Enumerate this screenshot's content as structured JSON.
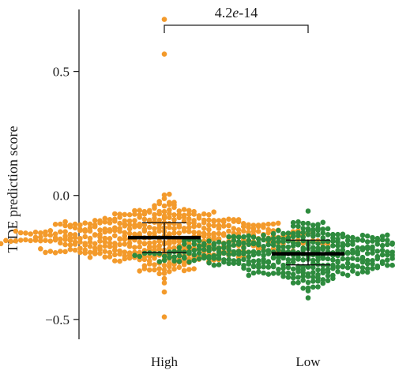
{
  "chart_data": {
    "type": "scatter",
    "subtype": "beeswarm",
    "title": "",
    "xlabel": "",
    "ylabel": "TIDE prediction score",
    "ylim": [
      -0.58,
      0.75
    ],
    "yticks": [
      -0.5,
      0.0,
      0.5
    ],
    "ytick_labels": [
      "−0.5",
      "0.0",
      "0.5"
    ],
    "categories": [
      "High",
      "Low"
    ],
    "significance": {
      "label": "4.2e-14",
      "base": "4.2",
      "italic": "e",
      "exponent": "-14"
    },
    "grid": false,
    "legend": "none",
    "series": [
      {
        "name": "High",
        "color": "#F39A2B",
        "mean": -0.17,
        "sd_low": -0.23,
        "sd_high": -0.11,
        "n": 520,
        "min": -0.54,
        "max": 0.11,
        "outliers": [
          0.71,
          0.57,
          -0.49
        ]
      },
      {
        "name": "Low",
        "color": "#2E8B3E",
        "mean": -0.235,
        "sd_low": -0.28,
        "sd_high": -0.18,
        "n": 480,
        "min": -0.56,
        "max": 0.07,
        "outliers": []
      }
    ]
  }
}
